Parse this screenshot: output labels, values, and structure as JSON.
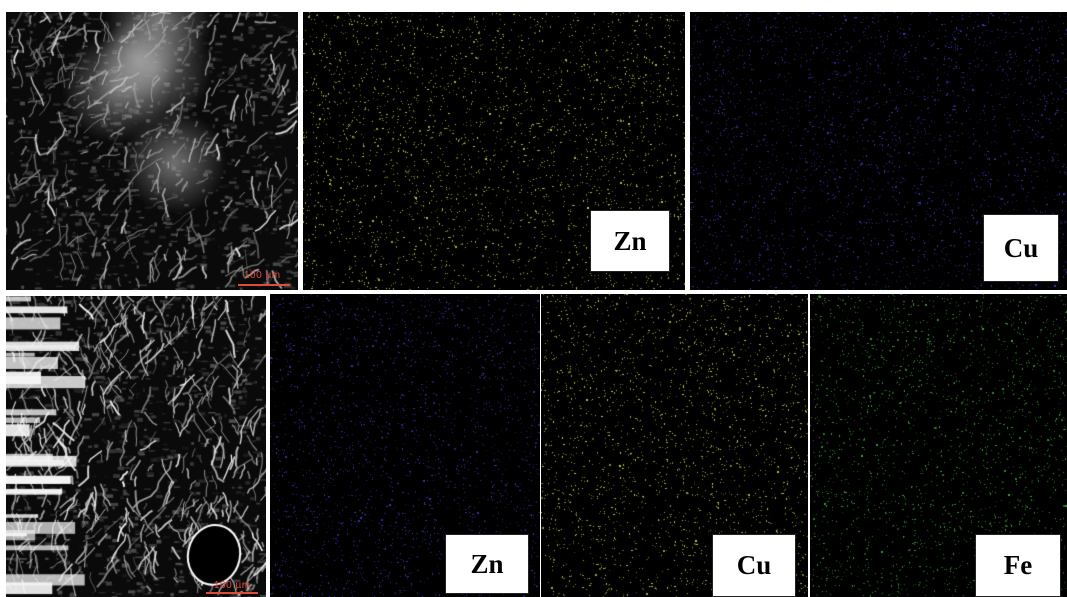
{
  "figure": {
    "top_row": {
      "sem_image": {
        "scale_label": "100 µm"
      },
      "maps": [
        {
          "element": "Zn",
          "dot_color": "#c8c84a"
        },
        {
          "element": "Cu",
          "dot_color": "#3a3ab8"
        }
      ]
    },
    "bottom_row": {
      "sem_image": {
        "scale_label": "100 µm"
      },
      "maps": [
        {
          "element": "Zn",
          "dot_color": "#3a3ab8"
        },
        {
          "element": "Cu",
          "dot_color": "#c8c84a"
        },
        {
          "element": "Fe",
          "dot_color": "#3ca83c"
        }
      ]
    }
  }
}
